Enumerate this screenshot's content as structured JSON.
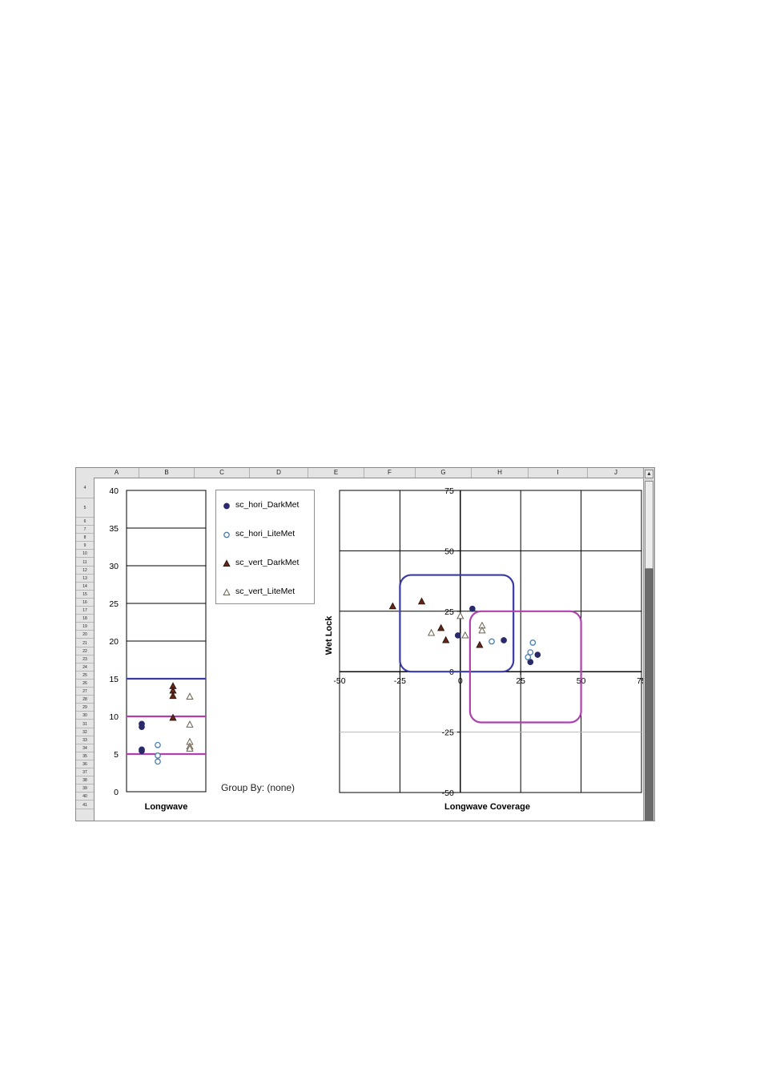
{
  "sheet": {
    "columns": [
      "A",
      "B",
      "C",
      "D",
      "E",
      "F",
      "G",
      "H",
      "I",
      "J"
    ],
    "rows": [
      "4",
      "5",
      "6",
      "7",
      "8",
      "9",
      "10",
      "11",
      "12",
      "13",
      "14",
      "15",
      "16",
      "17",
      "18",
      "19",
      "20",
      "21",
      "22",
      "23",
      "24",
      "25",
      "26",
      "27",
      "28",
      "29",
      "30",
      "31",
      "32",
      "33",
      "34",
      "35",
      "36",
      "37",
      "38",
      "39",
      "40",
      "41"
    ],
    "scroll_up_glyph": "▲"
  },
  "group_by_label": "Group By: (none)",
  "legend": [
    {
      "name": "sc_hori_DarkMet",
      "symbol": "filled-circle",
      "color": "#2a2a6a"
    },
    {
      "name": "sc_hori_LiteMet",
      "symbol": "open-circle",
      "color": "#4a7fb0"
    },
    {
      "name": "sc_vert_DarkMet",
      "symbol": "filled-triangle",
      "color": "#6b2418"
    },
    {
      "name": "sc_vert_LiteMet",
      "symbol": "open-triangle",
      "color": "#6b6050"
    }
  ],
  "chart_data": [
    {
      "type": "scatter",
      "title": "",
      "xlabel": "Longwave",
      "ylabel": "",
      "ylim": [
        0,
        40
      ],
      "yticks": [
        "0",
        "5",
        "10",
        "15",
        "20",
        "25",
        "30",
        "35",
        "40"
      ],
      "grid": true,
      "reference_lines": [
        {
          "y": 15,
          "color": "#3a3aa8"
        },
        {
          "y": 10,
          "color": "#b040b0"
        },
        {
          "y": 5,
          "color": "#b040b0"
        }
      ],
      "series": [
        {
          "name": "sc_hori_DarkMet",
          "points": [
            {
              "x": 0,
              "y": 9.0
            },
            {
              "x": 0,
              "y": 8.6
            },
            {
              "x": 0,
              "y": 5.6
            },
            {
              "x": 0,
              "y": 5.4
            }
          ]
        },
        {
          "name": "sc_hori_LiteMet",
          "points": [
            {
              "x": 1,
              "y": 6.2
            },
            {
              "x": 1,
              "y": 4.8
            },
            {
              "x": 1,
              "y": 4.0
            }
          ]
        },
        {
          "name": "sc_vert_DarkMet",
          "points": [
            {
              "x": 2,
              "y": 14.0
            },
            {
              "x": 2,
              "y": 13.4
            },
            {
              "x": 2,
              "y": 12.7
            },
            {
              "x": 2,
              "y": 9.8
            }
          ]
        },
        {
          "name": "sc_vert_LiteMet",
          "points": [
            {
              "x": 3,
              "y": 12.6
            },
            {
              "x": 3,
              "y": 8.9
            },
            {
              "x": 3,
              "y": 6.6
            },
            {
              "x": 3,
              "y": 6.0
            },
            {
              "x": 3,
              "y": 5.7
            }
          ]
        }
      ]
    },
    {
      "type": "scatter",
      "title": "",
      "xlabel": "Longwave Coverage",
      "ylabel": "Wet Lock",
      "xlim": [
        -50,
        75
      ],
      "ylim": [
        -50,
        75
      ],
      "xticks": [
        "-50",
        "-25",
        "0",
        "25",
        "50",
        "75"
      ],
      "yticks": [
        "-50",
        "-25",
        "0",
        "25",
        "50",
        "75"
      ],
      "grid": true,
      "regions": [
        {
          "color": "#3a3aa8",
          "x": [
            -25,
            22
          ],
          "y": [
            0,
            40
          ]
        },
        {
          "color": "#b040b0",
          "x": [
            4,
            50
          ],
          "y": [
            -21,
            25
          ]
        }
      ],
      "series": [
        {
          "name": "sc_hori_DarkMet",
          "points": [
            {
              "x": 5,
              "y": 26
            },
            {
              "x": -1,
              "y": 15
            },
            {
              "x": 18,
              "y": 13
            },
            {
              "x": 32,
              "y": 7
            },
            {
              "x": 29,
              "y": 4
            }
          ]
        },
        {
          "name": "sc_hori_LiteMet",
          "points": [
            {
              "x": 13,
              "y": 12.5
            },
            {
              "x": 30,
              "y": 12
            },
            {
              "x": 29,
              "y": 8
            },
            {
              "x": 28,
              "y": 6
            }
          ]
        },
        {
          "name": "sc_vert_DarkMet",
          "points": [
            {
              "x": -28,
              "y": 27
            },
            {
              "x": -16,
              "y": 29
            },
            {
              "x": -8,
              "y": 18
            },
            {
              "x": -6,
              "y": 13
            },
            {
              "x": 8,
              "y": 11
            }
          ]
        },
        {
          "name": "sc_vert_LiteMet",
          "points": [
            {
              "x": -12,
              "y": 16
            },
            {
              "x": 0,
              "y": 23
            },
            {
              "x": 2,
              "y": 15
            },
            {
              "x": 9,
              "y": 19
            },
            {
              "x": 9,
              "y": 17
            }
          ]
        }
      ]
    }
  ]
}
